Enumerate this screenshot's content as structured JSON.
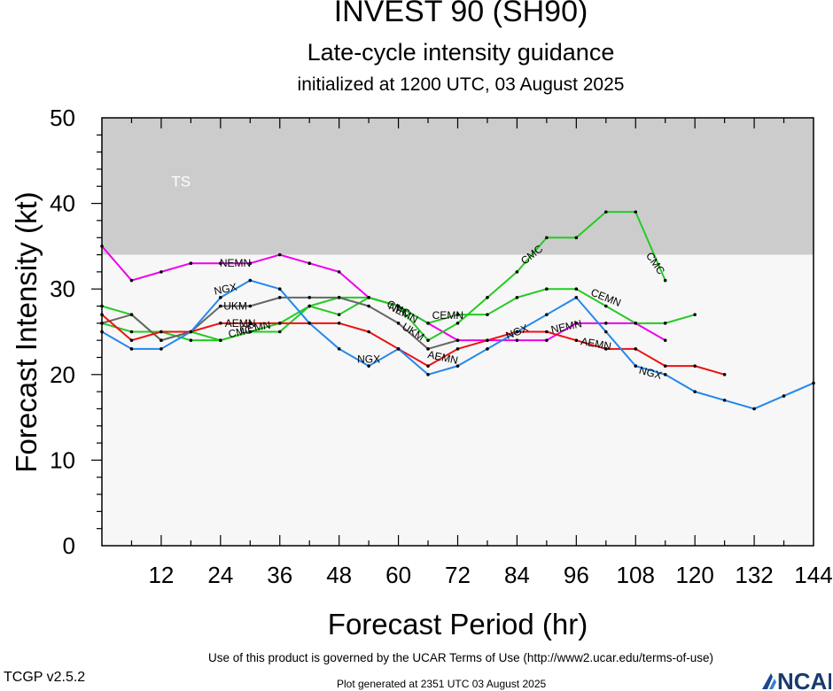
{
  "header": {
    "title": "INVEST 90 (SH90)",
    "subtitle": "Late-cycle intensity guidance",
    "initialized": "initialized at 1200 UTC, 03 August 2025"
  },
  "footer": {
    "terms": "Use of this product is governed by the UCAR Terms of Use (http://www2.ucar.edu/terms-of-use)",
    "version": "TCGP v2.5.2",
    "generated": "Plot generated at 2351 UTC   03 August 2025",
    "logo_text": "NCAR"
  },
  "chart_data": {
    "type": "line",
    "title": "INVEST 90 (SH90)",
    "xlabel": "Forecast Period (hr)",
    "ylabel": "Forecast Intensity (kt)",
    "xlim": [
      0,
      144
    ],
    "ylim": [
      0,
      50
    ],
    "xticks": [
      12,
      24,
      36,
      48,
      60,
      72,
      84,
      96,
      108,
      120,
      132,
      144
    ],
    "yticks": [
      0,
      10,
      20,
      30,
      40,
      50
    ],
    "grid": false,
    "bands": [
      {
        "label": "TS",
        "from": 34,
        "to": 50,
        "color": "#cccccc"
      },
      {
        "label": "",
        "from": 0,
        "to": 34,
        "color": "#f7f7f7"
      }
    ],
    "series": [
      {
        "name": "NEMN",
        "color": "#ee00ee",
        "x": [
          0,
          6,
          12,
          18,
          24,
          30,
          36,
          42,
          48,
          54,
          60,
          66,
          72,
          78,
          84,
          90,
          96,
          102,
          108,
          114
        ],
        "y": [
          35,
          31,
          32,
          33,
          33,
          33,
          34,
          33,
          32,
          29,
          28,
          26,
          24,
          24,
          24,
          24,
          26,
          26,
          26,
          24
        ]
      },
      {
        "name": "CMC",
        "color": "#22cc22",
        "x": [
          0,
          6,
          12,
          18,
          24,
          30,
          36,
          42,
          48,
          54,
          60,
          66,
          72,
          78,
          84,
          90,
          96,
          102,
          108,
          114
        ],
        "y": [
          26,
          25,
          25,
          24,
          24,
          25,
          25,
          28,
          29,
          29,
          28,
          24,
          26,
          29,
          32,
          36,
          36,
          39,
          39,
          31
        ]
      },
      {
        "name": "CEMN",
        "color": "#22cc22",
        "x": [
          0,
          6,
          12,
          18,
          24,
          30,
          36,
          42,
          48,
          54,
          60,
          66,
          72,
          78,
          84,
          90,
          96,
          102,
          108,
          114,
          120
        ],
        "y": [
          28,
          27,
          24,
          25,
          24,
          25,
          26,
          28,
          27,
          29,
          28,
          26,
          27,
          27,
          29,
          30,
          30,
          28,
          26,
          26,
          27
        ]
      },
      {
        "name": "UKM",
        "color": "#666666",
        "x": [
          0,
          6,
          12,
          18,
          24,
          30,
          36,
          42,
          48,
          54,
          60,
          66,
          72
        ],
        "y": [
          26,
          27,
          24,
          25,
          28,
          28,
          29,
          29,
          29,
          28,
          26,
          23,
          24
        ]
      },
      {
        "name": "AEMN",
        "color": "#ee1111",
        "x": [
          0,
          6,
          12,
          18,
          24,
          30,
          36,
          42,
          48,
          54,
          60,
          66,
          72,
          78,
          84,
          90,
          96,
          102,
          108,
          114,
          120,
          126
        ],
        "y": [
          27,
          24,
          25,
          25,
          26,
          26,
          26,
          26,
          26,
          25,
          23,
          21,
          23,
          24,
          25,
          25,
          24,
          23,
          23,
          21,
          21,
          20
        ]
      },
      {
        "name": "NGX",
        "color": "#2288ee",
        "x": [
          0,
          6,
          12,
          18,
          24,
          30,
          36,
          42,
          48,
          54,
          60,
          66,
          72,
          78,
          84,
          90,
          96,
          102,
          108,
          114,
          120,
          126,
          132,
          138,
          144
        ],
        "y": [
          25,
          23,
          23,
          25,
          29,
          31,
          30,
          26,
          23,
          21,
          23,
          20,
          21,
          23,
          25,
          27,
          29,
          25,
          21,
          20,
          18,
          17,
          16,
          17.5,
          19
        ]
      }
    ],
    "labels": [
      {
        "text": "NEMN",
        "series": "NEMN",
        "x": 27,
        "y": 33,
        "angle": 0
      },
      {
        "text": "NEMN",
        "series": "NEMN",
        "x": 61,
        "y": 27.2,
        "angle": 28
      },
      {
        "text": "NEMN",
        "series": "NEMN",
        "x": 94,
        "y": 25.6,
        "angle": -12
      },
      {
        "text": "CMC",
        "series": "CMC",
        "x": 28,
        "y": 25,
        "angle": -12
      },
      {
        "text": "CMC",
        "series": "CMC",
        "x": 60,
        "y": 27.7,
        "angle": 28
      },
      {
        "text": "CMC",
        "series": "CMC",
        "x": 87,
        "y": 34,
        "angle": -38
      },
      {
        "text": "CMC",
        "series": "CMC",
        "x": 112,
        "y": 33,
        "angle": 55
      },
      {
        "text": "CEMN",
        "series": "CEMN",
        "x": 31,
        "y": 25.5,
        "angle": -10
      },
      {
        "text": "CEMN",
        "series": "CEMN",
        "x": 70,
        "y": 26.9,
        "angle": 0
      },
      {
        "text": "CEMN",
        "series": "CEMN",
        "x": 102,
        "y": 29,
        "angle": 22
      },
      {
        "text": "UKM",
        "series": "UKM",
        "x": 27,
        "y": 28,
        "angle": 0
      },
      {
        "text": "UKM",
        "series": "UKM",
        "x": 63,
        "y": 25,
        "angle": 32
      },
      {
        "text": "AEMN",
        "series": "AEMN",
        "x": 28,
        "y": 26,
        "angle": 0
      },
      {
        "text": "AEMN",
        "series": "AEMN",
        "x": 69,
        "y": 22,
        "angle": 12
      },
      {
        "text": "AEMN",
        "series": "AEMN",
        "x": 100,
        "y": 23.6,
        "angle": 10
      },
      {
        "text": "NGX",
        "series": "NGX",
        "x": 25,
        "y": 30,
        "angle": -12
      },
      {
        "text": "NGX",
        "series": "NGX",
        "x": 54,
        "y": 21.8,
        "angle": 0
      },
      {
        "text": "NGX",
        "series": "NGX",
        "x": 84,
        "y": 25,
        "angle": -22
      },
      {
        "text": "NGX",
        "series": "NGX",
        "x": 111,
        "y": 20.2,
        "angle": 15
      }
    ],
    "band_label": "TS"
  }
}
